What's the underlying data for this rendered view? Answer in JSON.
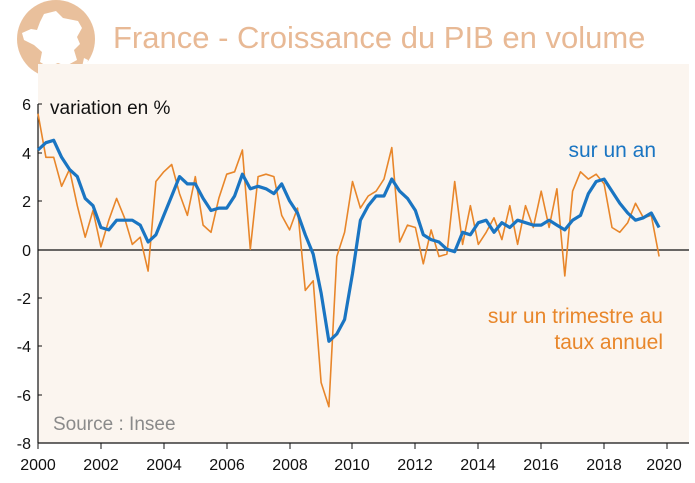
{
  "header": {
    "title": "France - Croissance du PIB en volume",
    "icon": "france-map-icon"
  },
  "colors": {
    "title": "#e8b995",
    "panel_bg": "#fbf5ef",
    "annual_line": "#1a75c2",
    "quarterly_line": "#e8862a",
    "axis": "#111111",
    "source": "#8a8a8a"
  },
  "chart_data": {
    "type": "line",
    "title": "France - Croissance du PIB en volume",
    "ylabel": "variation en %",
    "xlabel": "",
    "ylim": [
      -8,
      6
    ],
    "xlim": [
      2000,
      2020.5
    ],
    "y_ticks": [
      "6",
      "4",
      "2",
      "0",
      "-2",
      "-4",
      "-6",
      "-8"
    ],
    "x_ticks": [
      "2000",
      "2002",
      "2004",
      "2006",
      "2008",
      "2010",
      "2012",
      "2014",
      "2016",
      "2018",
      "2020"
    ],
    "annotations": {
      "annual": "sur un an",
      "quarterly_line1": "sur un trimestre au",
      "quarterly_line2": "taux annuel"
    },
    "source": "Source : Insee",
    "series": [
      {
        "name": "sur un an",
        "x": [
          2000.0,
          2000.25,
          2000.5,
          2000.75,
          2001.0,
          2001.25,
          2001.5,
          2001.75,
          2002.0,
          2002.25,
          2002.5,
          2002.75,
          2003.0,
          2003.25,
          2003.5,
          2003.75,
          2004.0,
          2004.25,
          2004.5,
          2004.75,
          2005.0,
          2005.25,
          2005.5,
          2005.75,
          2006.0,
          2006.25,
          2006.5,
          2006.75,
          2007.0,
          2007.25,
          2007.5,
          2007.75,
          2008.0,
          2008.25,
          2008.5,
          2008.75,
          2009.0,
          2009.25,
          2009.5,
          2009.75,
          2010.0,
          2010.25,
          2010.5,
          2010.75,
          2011.0,
          2011.25,
          2011.5,
          2011.75,
          2012.0,
          2012.25,
          2012.5,
          2012.75,
          2013.0,
          2013.25,
          2013.5,
          2013.75,
          2014.0,
          2014.25,
          2014.5,
          2014.75,
          2015.0,
          2015.25,
          2015.5,
          2015.75,
          2016.0,
          2016.25,
          2016.5,
          2016.75,
          2017.0,
          2017.25,
          2017.5,
          2017.75,
          2018.0,
          2018.25,
          2018.5,
          2018.75,
          2019.0,
          2019.25,
          2019.5,
          2019.75
        ],
        "values": [
          4.1,
          4.4,
          4.5,
          3.8,
          3.3,
          3.0,
          2.1,
          1.8,
          0.9,
          0.8,
          1.2,
          1.2,
          1.2,
          1.0,
          0.3,
          0.6,
          1.4,
          2.2,
          3.0,
          2.7,
          2.7,
          2.1,
          1.6,
          1.7,
          1.7,
          2.2,
          3.1,
          2.5,
          2.6,
          2.5,
          2.3,
          2.7,
          2.0,
          1.5,
          0.6,
          -0.2,
          -1.8,
          -3.8,
          -3.5,
          -2.9,
          -1.0,
          1.2,
          1.8,
          2.2,
          2.2,
          2.9,
          2.4,
          2.1,
          1.6,
          0.6,
          0.4,
          0.3,
          0.0,
          -0.1,
          0.7,
          0.6,
          1.1,
          1.2,
          0.7,
          1.1,
          0.9,
          1.2,
          1.1,
          1.0,
          1.0,
          1.2,
          1.0,
          0.8,
          1.2,
          1.4,
          2.3,
          2.8,
          2.9,
          2.4,
          1.9,
          1.5,
          1.2,
          1.3,
          1.5,
          0.9
        ]
      },
      {
        "name": "sur un trimestre au taux annuel",
        "x": [
          2000.0,
          2000.25,
          2000.5,
          2000.75,
          2001.0,
          2001.25,
          2001.5,
          2001.75,
          2002.0,
          2002.25,
          2002.5,
          2002.75,
          2003.0,
          2003.25,
          2003.5,
          2003.75,
          2004.0,
          2004.25,
          2004.5,
          2004.75,
          2005.0,
          2005.25,
          2005.5,
          2005.75,
          2006.0,
          2006.25,
          2006.5,
          2006.75,
          2007.0,
          2007.25,
          2007.5,
          2007.75,
          2008.0,
          2008.25,
          2008.5,
          2008.75,
          2009.0,
          2009.25,
          2009.5,
          2009.75,
          2010.0,
          2010.25,
          2010.5,
          2010.75,
          2011.0,
          2011.25,
          2011.5,
          2011.75,
          2012.0,
          2012.25,
          2012.5,
          2012.75,
          2013.0,
          2013.25,
          2013.5,
          2013.75,
          2014.0,
          2014.25,
          2014.5,
          2014.75,
          2015.0,
          2015.25,
          2015.5,
          2015.75,
          2016.0,
          2016.25,
          2016.5,
          2016.75,
          2017.0,
          2017.25,
          2017.5,
          2017.75,
          2018.0,
          2018.25,
          2018.5,
          2018.75,
          2019.0,
          2019.25,
          2019.5,
          2019.75
        ],
        "values": [
          5.6,
          3.8,
          3.8,
          2.6,
          3.3,
          1.8,
          0.5,
          1.6,
          0.1,
          1.2,
          2.1,
          1.3,
          0.2,
          0.5,
          -0.9,
          2.8,
          3.2,
          3.5,
          2.3,
          1.4,
          3.0,
          1.0,
          0.7,
          2.1,
          3.1,
          3.2,
          4.1,
          0.0,
          3.0,
          3.1,
          3.0,
          1.4,
          0.8,
          1.7,
          -1.7,
          -1.3,
          -5.5,
          -6.5,
          -0.3,
          0.7,
          2.8,
          1.7,
          2.2,
          2.4,
          2.9,
          4.2,
          0.3,
          1.0,
          0.9,
          -0.6,
          0.8,
          -0.3,
          -0.2,
          2.8,
          0.2,
          1.8,
          0.2,
          0.7,
          1.3,
          0.4,
          1.8,
          0.2,
          1.8,
          0.9,
          2.4,
          0.9,
          2.5,
          -1.1,
          2.4,
          3.2,
          2.9,
          3.1,
          2.7,
          0.9,
          0.7,
          1.1,
          1.9,
          1.3,
          1.4,
          -0.3
        ]
      }
    ]
  }
}
